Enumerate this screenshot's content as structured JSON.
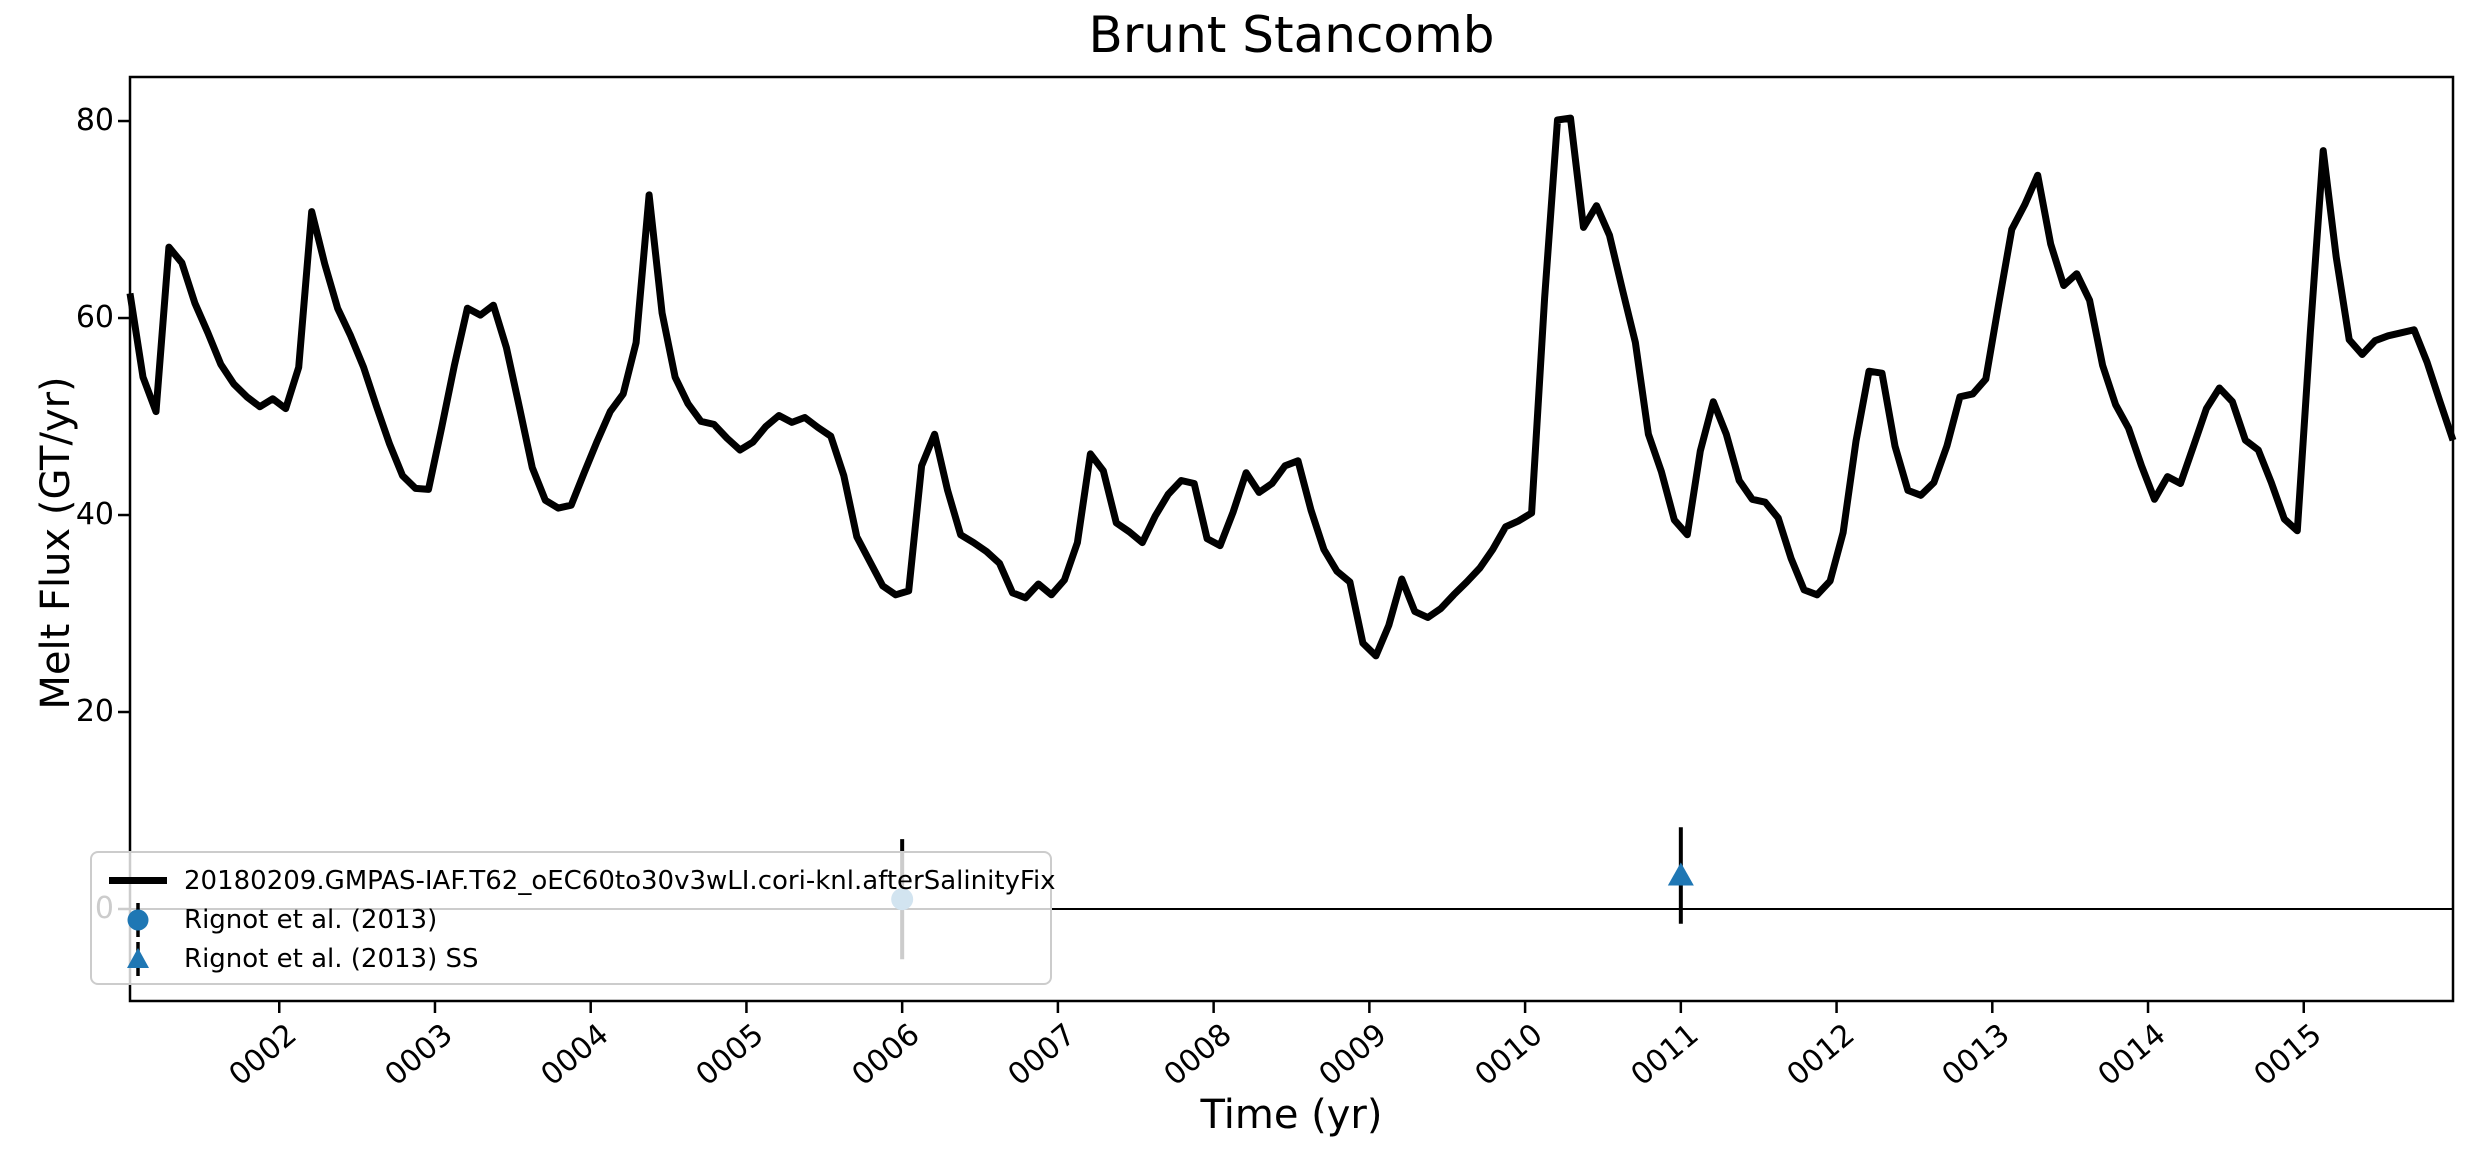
{
  "chart_data": {
    "type": "line",
    "title": "Brunt Stancomb",
    "xlabel": "Time (yr)",
    "ylabel": "Melt Flux (GT/yr)",
    "xlim": [
      1.0417,
      15.9583
    ],
    "ylim": [
      -9.34,
      84.47
    ],
    "grid": false,
    "zero_line": 0,
    "legend_position": "lower left",
    "x_ticks": {
      "values": [
        2,
        3,
        4,
        5,
        6,
        7,
        8,
        9,
        10,
        11,
        12,
        13,
        14,
        15
      ],
      "labels": [
        "0002",
        "0003",
        "0004",
        "0005",
        "0006",
        "0007",
        "0008",
        "0009",
        "0010",
        "0011",
        "0012",
        "0013",
        "0014",
        "0015"
      ]
    },
    "y_ticks": {
      "values": [
        0,
        20,
        40,
        60,
        80
      ],
      "labels": [
        "0",
        "20",
        "40",
        "60",
        "80"
      ]
    },
    "series": [
      {
        "name": "20180209.GMPAS-IAF.T62_oEC60to30v3wLI.cori-knl.afterSalinityFix",
        "color": "#000000",
        "line_width": 7,
        "x_start": 1.0417,
        "x_step": 0.0833333,
        "values": [
          62.5,
          54.0,
          50.5,
          67.2,
          65.6,
          61.5,
          58.5,
          55.3,
          53.3,
          52.0,
          51.0,
          51.8,
          50.8,
          55.0,
          70.8,
          65.5,
          61.0,
          58.2,
          55.0,
          51.0,
          47.2,
          44.0,
          42.7,
          42.6,
          48.8,
          55.2,
          61.0,
          60.3,
          61.3,
          57.0,
          51.0,
          44.8,
          41.5,
          40.7,
          41.0,
          44.3,
          47.5,
          50.5,
          52.3,
          57.5,
          72.5,
          60.5,
          54.0,
          51.3,
          49.5,
          49.2,
          47.8,
          46.6,
          47.4,
          49.0,
          50.1,
          49.4,
          49.9,
          48.9,
          48.0,
          44.0,
          37.8,
          35.3,
          32.8,
          31.9,
          32.3,
          45.0,
          48.2,
          42.5,
          38.0,
          37.2,
          36.3,
          35.1,
          32.1,
          31.6,
          33.0,
          31.9,
          33.4,
          37.2,
          46.2,
          44.5,
          39.2,
          38.3,
          37.2,
          39.9,
          42.1,
          43.5,
          43.2,
          37.6,
          36.9,
          40.3,
          44.3,
          42.3,
          43.2,
          45.0,
          45.5,
          40.5,
          36.5,
          34.3,
          33.2,
          27.0,
          25.7,
          28.8,
          33.5,
          30.2,
          29.6,
          30.5,
          31.9,
          33.2,
          34.6,
          36.5,
          38.8,
          39.4,
          40.2,
          62.0,
          80.1,
          80.3,
          69.2,
          71.4,
          68.4,
          62.9,
          57.5,
          48.2,
          44.4,
          39.5,
          38.0,
          46.5,
          51.5,
          48.2,
          43.5,
          41.6,
          41.3,
          39.7,
          35.6,
          32.4,
          31.9,
          33.3,
          38.2,
          47.5,
          54.6,
          54.4,
          47.0,
          42.5,
          42.0,
          43.3,
          47.0,
          52.0,
          52.3,
          53.8,
          61.5,
          69.0,
          71.5,
          74.5,
          67.5,
          63.3,
          64.5,
          61.8,
          55.2,
          51.2,
          48.8,
          45.0,
          41.6,
          43.9,
          43.2,
          47.0,
          50.8,
          52.9,
          51.5,
          47.6,
          46.6,
          43.3,
          39.6,
          38.4,
          58.5,
          77.0,
          66.2,
          57.8,
          56.3,
          57.7,
          58.2,
          58.5,
          58.8,
          55.5,
          51.5,
          47.6
        ]
      }
    ],
    "ref_points": [
      {
        "label": "Rignot et al. (2013)",
        "marker": "circle",
        "marker_color": "#1f77b4",
        "errorbar_color": "#000000",
        "x": 6.0,
        "y": 1.0,
        "yerr": 6.1
      },
      {
        "label": "Rignot et al. (2013) SS",
        "marker": "triangle-up",
        "marker_color": "#1f77b4",
        "errorbar_color": "#000000",
        "x": 11.0,
        "y": 3.4,
        "yerr": 4.9
      }
    ]
  }
}
